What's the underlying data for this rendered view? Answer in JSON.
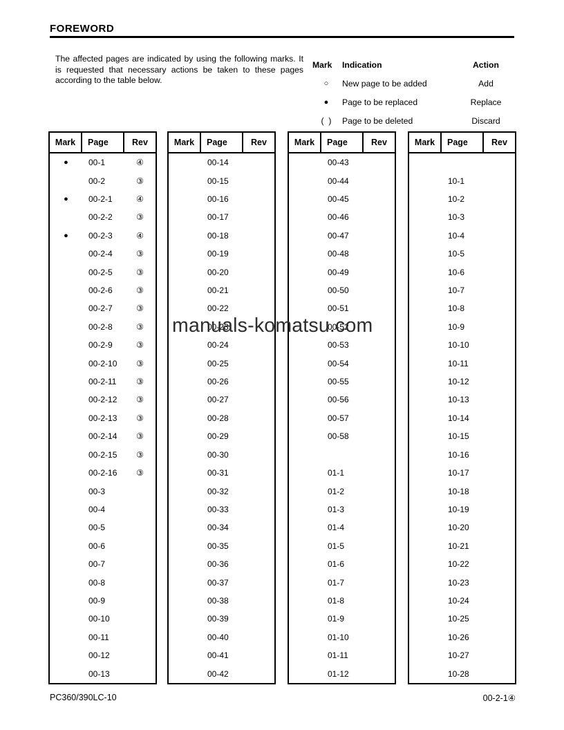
{
  "page": {
    "title": "FOREWORD",
    "intro": "The affected pages are indicated by using the following marks. It is requested that necessary actions be taken to these pages according to the table below.",
    "footer_left": "PC360/390LC-10",
    "footer_right": "00-2-1④"
  },
  "watermark": "manuals-komatsu.com",
  "legend": {
    "headers": {
      "mark": "Mark",
      "indication": "Indication",
      "action": "Action"
    },
    "rows": [
      {
        "mark": "○",
        "indication": "New page to be added",
        "action": "Add"
      },
      {
        "mark": "●",
        "indication": "Page to be replaced",
        "action": "Replace"
      },
      {
        "mark": "(  )",
        "indication": "Page to be deleted",
        "action": "Discard"
      }
    ]
  },
  "tables": {
    "headers": [
      "Mark",
      "Page",
      "Rev"
    ],
    "columns": [
      {
        "rows": [
          {
            "mark": "●",
            "page": "00-1",
            "rev": "④"
          },
          {
            "mark": "",
            "page": "00-2",
            "rev": "③"
          },
          {
            "mark": "●",
            "page": "00-2-1",
            "rev": "④"
          },
          {
            "mark": "",
            "page": "00-2-2",
            "rev": "③"
          },
          {
            "mark": "●",
            "page": "00-2-3",
            "rev": "④"
          },
          {
            "mark": "",
            "page": "00-2-4",
            "rev": "③"
          },
          {
            "mark": "",
            "page": "00-2-5",
            "rev": "③"
          },
          {
            "mark": "",
            "page": "00-2-6",
            "rev": "③"
          },
          {
            "mark": "",
            "page": "00-2-7",
            "rev": "③"
          },
          {
            "mark": "",
            "page": "00-2-8",
            "rev": "③"
          },
          {
            "mark": "",
            "page": "00-2-9",
            "rev": "③"
          },
          {
            "mark": "",
            "page": "00-2-10",
            "rev": "③"
          },
          {
            "mark": "",
            "page": "00-2-11",
            "rev": "③"
          },
          {
            "mark": "",
            "page": "00-2-12",
            "rev": "③"
          },
          {
            "mark": "",
            "page": "00-2-13",
            "rev": "③"
          },
          {
            "mark": "",
            "page": "00-2-14",
            "rev": "③"
          },
          {
            "mark": "",
            "page": "00-2-15",
            "rev": "③"
          },
          {
            "mark": "",
            "page": "00-2-16",
            "rev": "③"
          },
          {
            "mark": "",
            "page": "00-3",
            "rev": ""
          },
          {
            "mark": "",
            "page": "00-4",
            "rev": ""
          },
          {
            "mark": "",
            "page": "00-5",
            "rev": ""
          },
          {
            "mark": "",
            "page": "00-6",
            "rev": ""
          },
          {
            "mark": "",
            "page": "00-7",
            "rev": ""
          },
          {
            "mark": "",
            "page": "00-8",
            "rev": ""
          },
          {
            "mark": "",
            "page": "00-9",
            "rev": ""
          },
          {
            "mark": "",
            "page": "00-10",
            "rev": ""
          },
          {
            "mark": "",
            "page": "00-11",
            "rev": ""
          },
          {
            "mark": "",
            "page": "00-12",
            "rev": ""
          },
          {
            "mark": "",
            "page": "00-13",
            "rev": ""
          }
        ]
      },
      {
        "rows": [
          {
            "mark": "",
            "page": "00-14",
            "rev": ""
          },
          {
            "mark": "",
            "page": "00-15",
            "rev": ""
          },
          {
            "mark": "",
            "page": "00-16",
            "rev": ""
          },
          {
            "mark": "",
            "page": "00-17",
            "rev": ""
          },
          {
            "mark": "",
            "page": "00-18",
            "rev": ""
          },
          {
            "mark": "",
            "page": "00-19",
            "rev": ""
          },
          {
            "mark": "",
            "page": "00-20",
            "rev": ""
          },
          {
            "mark": "",
            "page": "00-21",
            "rev": ""
          },
          {
            "mark": "",
            "page": "00-22",
            "rev": ""
          },
          {
            "mark": "",
            "page": "00-23",
            "rev": ""
          },
          {
            "mark": "",
            "page": "00-24",
            "rev": ""
          },
          {
            "mark": "",
            "page": "00-25",
            "rev": ""
          },
          {
            "mark": "",
            "page": "00-26",
            "rev": ""
          },
          {
            "mark": "",
            "page": "00-27",
            "rev": ""
          },
          {
            "mark": "",
            "page": "00-28",
            "rev": ""
          },
          {
            "mark": "",
            "page": "00-29",
            "rev": ""
          },
          {
            "mark": "",
            "page": "00-30",
            "rev": ""
          },
          {
            "mark": "",
            "page": "00-31",
            "rev": ""
          },
          {
            "mark": "",
            "page": "00-32",
            "rev": ""
          },
          {
            "mark": "",
            "page": "00-33",
            "rev": ""
          },
          {
            "mark": "",
            "page": "00-34",
            "rev": ""
          },
          {
            "mark": "",
            "page": "00-35",
            "rev": ""
          },
          {
            "mark": "",
            "page": "00-36",
            "rev": ""
          },
          {
            "mark": "",
            "page": "00-37",
            "rev": ""
          },
          {
            "mark": "",
            "page": "00-38",
            "rev": ""
          },
          {
            "mark": "",
            "page": "00-39",
            "rev": ""
          },
          {
            "mark": "",
            "page": "00-40",
            "rev": ""
          },
          {
            "mark": "",
            "page": "00-41",
            "rev": ""
          },
          {
            "mark": "",
            "page": "00-42",
            "rev": ""
          }
        ]
      },
      {
        "rows": [
          {
            "mark": "",
            "page": "00-43",
            "rev": ""
          },
          {
            "mark": "",
            "page": "00-44",
            "rev": ""
          },
          {
            "mark": "",
            "page": "00-45",
            "rev": ""
          },
          {
            "mark": "",
            "page": "00-46",
            "rev": ""
          },
          {
            "mark": "",
            "page": "00-47",
            "rev": ""
          },
          {
            "mark": "",
            "page": "00-48",
            "rev": ""
          },
          {
            "mark": "",
            "page": "00-49",
            "rev": ""
          },
          {
            "mark": "",
            "page": "00-50",
            "rev": ""
          },
          {
            "mark": "",
            "page": "00-51",
            "rev": ""
          },
          {
            "mark": "",
            "page": "00-52",
            "rev": ""
          },
          {
            "mark": "",
            "page": "00-53",
            "rev": ""
          },
          {
            "mark": "",
            "page": "00-54",
            "rev": ""
          },
          {
            "mark": "",
            "page": "00-55",
            "rev": ""
          },
          {
            "mark": "",
            "page": "00-56",
            "rev": ""
          },
          {
            "mark": "",
            "page": "00-57",
            "rev": ""
          },
          {
            "mark": "",
            "page": "00-58",
            "rev": ""
          },
          {
            "mark": "",
            "page": "",
            "rev": ""
          },
          {
            "mark": "",
            "page": "01-1",
            "rev": ""
          },
          {
            "mark": "",
            "page": "01-2",
            "rev": ""
          },
          {
            "mark": "",
            "page": "01-3",
            "rev": ""
          },
          {
            "mark": "",
            "page": "01-4",
            "rev": ""
          },
          {
            "mark": "",
            "page": "01-5",
            "rev": ""
          },
          {
            "mark": "",
            "page": "01-6",
            "rev": ""
          },
          {
            "mark": "",
            "page": "01-7",
            "rev": ""
          },
          {
            "mark": "",
            "page": "01-8",
            "rev": ""
          },
          {
            "mark": "",
            "page": "01-9",
            "rev": ""
          },
          {
            "mark": "",
            "page": "01-10",
            "rev": ""
          },
          {
            "mark": "",
            "page": "01-11",
            "rev": ""
          },
          {
            "mark": "",
            "page": "01-12",
            "rev": ""
          }
        ]
      },
      {
        "rows": [
          {
            "mark": "",
            "page": "",
            "rev": ""
          },
          {
            "mark": "",
            "page": "10-1",
            "rev": ""
          },
          {
            "mark": "",
            "page": "10-2",
            "rev": ""
          },
          {
            "mark": "",
            "page": "10-3",
            "rev": ""
          },
          {
            "mark": "",
            "page": "10-4",
            "rev": ""
          },
          {
            "mark": "",
            "page": "10-5",
            "rev": ""
          },
          {
            "mark": "",
            "page": "10-6",
            "rev": ""
          },
          {
            "mark": "",
            "page": "10-7",
            "rev": ""
          },
          {
            "mark": "",
            "page": "10-8",
            "rev": ""
          },
          {
            "mark": "",
            "page": "10-9",
            "rev": ""
          },
          {
            "mark": "",
            "page": "10-10",
            "rev": ""
          },
          {
            "mark": "",
            "page": "10-11",
            "rev": ""
          },
          {
            "mark": "",
            "page": "10-12",
            "rev": ""
          },
          {
            "mark": "",
            "page": "10-13",
            "rev": ""
          },
          {
            "mark": "",
            "page": "10-14",
            "rev": ""
          },
          {
            "mark": "",
            "page": "10-15",
            "rev": ""
          },
          {
            "mark": "",
            "page": "10-16",
            "rev": ""
          },
          {
            "mark": "",
            "page": "10-17",
            "rev": ""
          },
          {
            "mark": "",
            "page": "10-18",
            "rev": ""
          },
          {
            "mark": "",
            "page": "10-19",
            "rev": ""
          },
          {
            "mark": "",
            "page": "10-20",
            "rev": ""
          },
          {
            "mark": "",
            "page": "10-21",
            "rev": ""
          },
          {
            "mark": "",
            "page": "10-22",
            "rev": ""
          },
          {
            "mark": "",
            "page": "10-23",
            "rev": ""
          },
          {
            "mark": "",
            "page": "10-24",
            "rev": ""
          },
          {
            "mark": "",
            "page": "10-25",
            "rev": ""
          },
          {
            "mark": "",
            "page": "10-26",
            "rev": ""
          },
          {
            "mark": "",
            "page": "10-27",
            "rev": ""
          },
          {
            "mark": "",
            "page": "10-28",
            "rev": ""
          }
        ]
      }
    ]
  }
}
